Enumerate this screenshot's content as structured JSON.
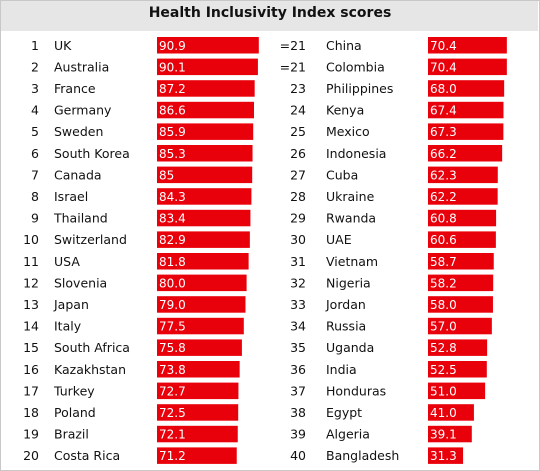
{
  "chart_data": {
    "type": "bar",
    "orientation": "horizontal",
    "title": "Health Inclusivity Index scores",
    "xlim": [
      0,
      100
    ],
    "grid": false,
    "bar_color": "#e8000b",
    "columns": [
      {
        "ranks": [
          "1",
          "2",
          "3",
          "4",
          "5",
          "6",
          "7",
          "8",
          "9",
          "10",
          "11",
          "12",
          "13",
          "14",
          "15",
          "16",
          "17",
          "18",
          "19",
          "20"
        ],
        "categories": [
          "UK",
          "Australia",
          "France",
          "Germany",
          "Sweden",
          "South Korea",
          "Canada",
          "Israel",
          "Thailand",
          "Switzerland",
          "USA",
          "Slovenia",
          "Japan",
          "Italy",
          "South Africa",
          "Kazakhstan",
          "Turkey",
          "Poland",
          "Brazil",
          "Costa Rica"
        ],
        "values": [
          90.9,
          90.1,
          87.2,
          86.6,
          85.9,
          85.3,
          85,
          84.3,
          83.4,
          82.9,
          81.8,
          80.0,
          79.0,
          77.5,
          75.8,
          73.8,
          72.7,
          72.5,
          72.1,
          71.2
        ],
        "value_labels": [
          "90.9",
          "90.1",
          "87.2",
          "86.6",
          "85.9",
          "85.3",
          "85",
          "84.3",
          "83.4",
          "82.9",
          "81.8",
          "80.0",
          "79.0",
          "77.5",
          "75.8",
          "73.8",
          "72.7",
          "72.5",
          "72.1",
          "71.2"
        ]
      },
      {
        "ranks": [
          "=21",
          "=21",
          "23",
          "24",
          "25",
          "26",
          "27",
          "28",
          "29",
          "30",
          "31",
          "32",
          "33",
          "34",
          "35",
          "36",
          "37",
          "38",
          "39",
          "40"
        ],
        "categories": [
          "China",
          "Colombia",
          "Philippines",
          "Kenya",
          "Mexico",
          "Indonesia",
          "Cuba",
          "Ukraine",
          "Rwanda",
          "UAE",
          "Vietnam",
          "Nigeria",
          "Jordan",
          "Russia",
          "Uganda",
          "India",
          "Honduras",
          "Egypt",
          "Algeria",
          "Bangladesh"
        ],
        "values": [
          70.4,
          70.4,
          68.0,
          67.4,
          67.3,
          66.2,
          62.3,
          62.2,
          60.8,
          60.6,
          58.7,
          58.2,
          58.0,
          57.0,
          52.8,
          52.5,
          51.0,
          41.0,
          39.1,
          31.3
        ],
        "value_labels": [
          "70.4",
          "70.4",
          "68.0",
          "67.4",
          "67.3",
          "66.2",
          "62.3",
          "62.2",
          "60.8",
          "60.6",
          "58.7",
          "58.2",
          "58.0",
          "57.0",
          "52.8",
          "52.5",
          "51.0",
          "41.0",
          "39.1",
          "31.3"
        ]
      }
    ]
  }
}
